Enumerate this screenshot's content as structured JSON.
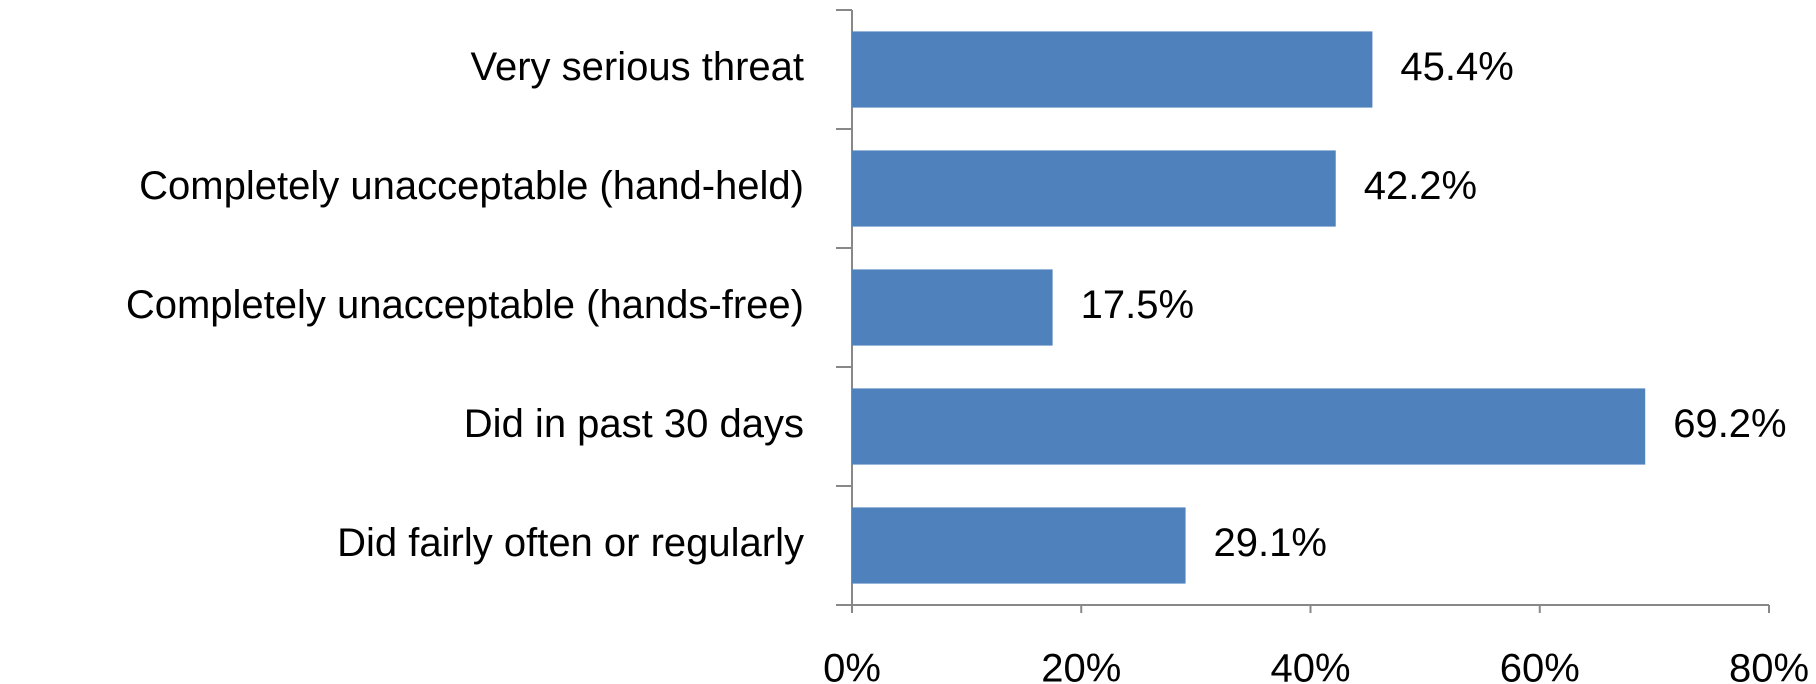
{
  "chart_data": {
    "type": "bar",
    "orientation": "horizontal",
    "categories": [
      "Very serious threat",
      "Completely unacceptable (hand-held)",
      "Completely unacceptable (hands-free)",
      "Did in past 30 days",
      "Did fairly often or regularly"
    ],
    "values": [
      45.4,
      42.2,
      17.5,
      69.2,
      29.1
    ],
    "value_labels": [
      "45.4%",
      "42.2%",
      "17.5%",
      "69.2%",
      "29.1%"
    ],
    "color": "#4f81bd",
    "xlim": [
      0,
      80
    ],
    "xticks": [
      {
        "value": 0,
        "label": "0%"
      },
      {
        "value": 20,
        "label": "20%"
      },
      {
        "value": 40,
        "label": "40%"
      },
      {
        "value": 60,
        "label": "60%"
      },
      {
        "value": 80,
        "label": "80%"
      }
    ],
    "grid": false
  }
}
